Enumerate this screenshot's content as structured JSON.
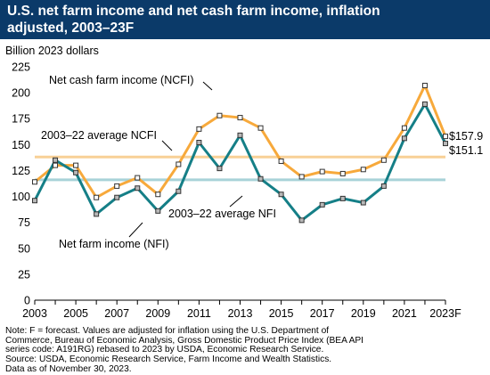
{
  "title": "U.S. net farm income and net cash farm income, inflation adjusted, 2003–23F",
  "title_lines": [
    "U.S. net farm income and net cash farm income, inflation",
    "adjusted, 2003–23F"
  ],
  "ylabel": "Billion 2023 dollars",
  "colors": {
    "title_bg": "#0b3a69",
    "ncfi": "#f7a93b",
    "nfi": "#157f87",
    "ncfi_avg": "#f8d096",
    "nfi_avg": "#a8d2d8",
    "marker_ncfi": "#ffffff",
    "marker_nfi": "#b8b8b8"
  },
  "notes": [
    "Note: F = forecast. Values are adjusted for inflation using the U.S. Department of",
    "Commerce, Bureau of Economic Analysis, Gross Domestic Product Price Index (BEA API",
    "series code: A191RG) rebased to 2023 by USDA, Economic Research Service.",
    "Source: USDA, Economic Research Service, Farm Income and Wealth Statistics.",
    "Data as of November 30, 2023."
  ],
  "chart_data": {
    "type": "line",
    "x": [
      2003,
      2004,
      2005,
      2006,
      2007,
      2008,
      2009,
      2010,
      2011,
      2012,
      2013,
      2014,
      2015,
      2016,
      2017,
      2018,
      2019,
      2020,
      2021,
      2022,
      2023
    ],
    "xtick_labels": [
      "2003",
      "2005",
      "2007",
      "2009",
      "2011",
      "2013",
      "2015",
      "2017",
      "2019",
      "2021",
      "2023F"
    ],
    "xtick_years": [
      2003,
      2005,
      2007,
      2009,
      2011,
      2013,
      2015,
      2017,
      2019,
      2021,
      2023
    ],
    "ylim": [
      0,
      225
    ],
    "yticks": [
      0,
      25,
      50,
      75,
      100,
      125,
      150,
      175,
      200,
      225
    ],
    "xlim": [
      2003,
      2023
    ],
    "series": [
      {
        "name": "Net cash farm income (NCFI)",
        "key": "ncfi",
        "values": [
          114,
          130,
          130,
          99,
          110,
          118,
          102,
          131,
          165,
          178,
          176,
          166,
          134,
          119,
          124,
          122,
          126,
          135,
          166,
          207,
          157.9
        ]
      },
      {
        "name": "Net farm income (NFI)",
        "key": "nfi",
        "values": [
          96,
          135,
          123,
          83,
          99,
          108,
          86,
          105,
          152,
          127,
          159,
          117,
          102,
          77,
          92,
          98,
          94,
          110,
          156,
          189,
          151.1
        ]
      }
    ],
    "reference_lines": [
      {
        "label": "2003–22 average NCFI",
        "value": 138,
        "key": "ncfi_avg"
      },
      {
        "label": "2003–22 average NFI",
        "value": 116,
        "key": "nfi_avg"
      }
    ],
    "end_labels": [
      "$157.9",
      "$151.1"
    ],
    "grid": false
  }
}
